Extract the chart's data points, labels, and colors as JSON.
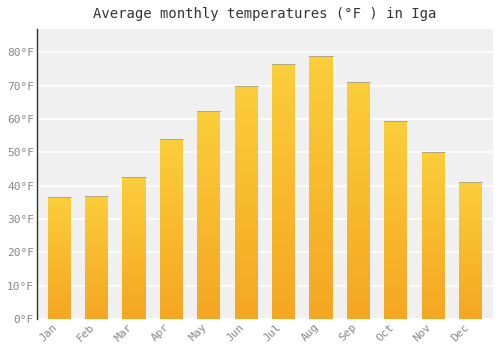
{
  "title": "Average monthly temperatures (°F ) in Iga",
  "months": [
    "Jan",
    "Feb",
    "Mar",
    "Apr",
    "May",
    "Jun",
    "Jul",
    "Aug",
    "Sep",
    "Oct",
    "Nov",
    "Dec"
  ],
  "values": [
    36.5,
    37.0,
    42.5,
    54.0,
    62.5,
    70.0,
    76.5,
    79.0,
    71.0,
    59.5,
    50.0,
    41.0
  ],
  "bar_color_bottom": "#F5A623",
  "bar_color_top": "#FBCE3B",
  "background_color": "#FFFFFF",
  "plot_bg_color": "#F0F0F0",
  "grid_color": "#FFFFFF",
  "yticks": [
    0,
    10,
    20,
    30,
    40,
    50,
    60,
    70,
    80
  ],
  "ytick_labels": [
    "0°F",
    "10°F",
    "20°F",
    "30°F",
    "40°F",
    "50°F",
    "60°F",
    "70°F",
    "80°F"
  ],
  "ylim": [
    0,
    87
  ],
  "title_fontsize": 10,
  "tick_fontsize": 8,
  "tick_font_color": "#888888",
  "bar_width": 0.62,
  "bar_edge_color": "#888888",
  "bar_edge_width": 0.3
}
